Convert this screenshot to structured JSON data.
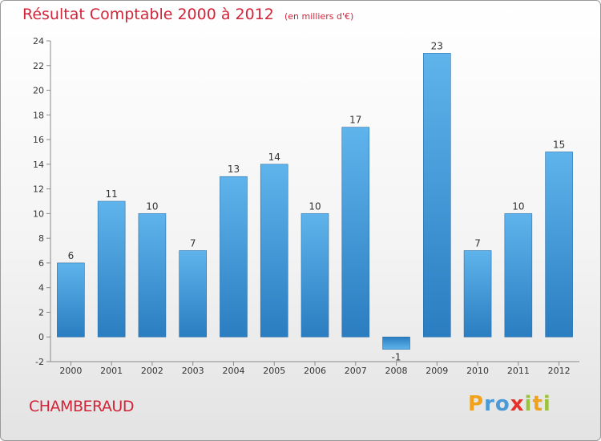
{
  "chart_data": {
    "type": "bar",
    "title": "Résultat Comptable 2000 à 2012",
    "subtitle": "(en milliers d'€)",
    "categories": [
      "2000",
      "2001",
      "2002",
      "2003",
      "2004",
      "2005",
      "2006",
      "2007",
      "2008",
      "2009",
      "2010",
      "2011",
      "2012"
    ],
    "values": [
      6,
      11,
      10,
      7,
      13,
      14,
      10,
      17,
      -1,
      23,
      7,
      10,
      15
    ],
    "value_labels": [
      "6",
      "11",
      "10",
      "7",
      "13",
      "14",
      "10",
      "17",
      "-1",
      "23",
      "7",
      "10",
      "15"
    ],
    "xlabel": "",
    "ylabel": "",
    "ylim": [
      -2,
      24
    ],
    "yticks": [
      "-2",
      "0",
      "2",
      "4",
      "6",
      "8",
      "10",
      "12",
      "14",
      "16",
      "18",
      "20",
      "22",
      "24"
    ],
    "grid": false,
    "bar_color": "#4aa3e0",
    "bar_color_dark": "#2a78bd"
  },
  "footer": {
    "commune": "CHAMBERAUD",
    "logo": [
      "P",
      "r",
      "o",
      "x",
      "i",
      "t",
      "i"
    ],
    "logo_colors": [
      "#f0a21c",
      "#4a9ad8",
      "#4a9ad8",
      "#e4322b",
      "#9bc43b",
      "#f0a21c",
      "#9bc43b"
    ]
  },
  "colors": {
    "accent": "#d3243a"
  }
}
